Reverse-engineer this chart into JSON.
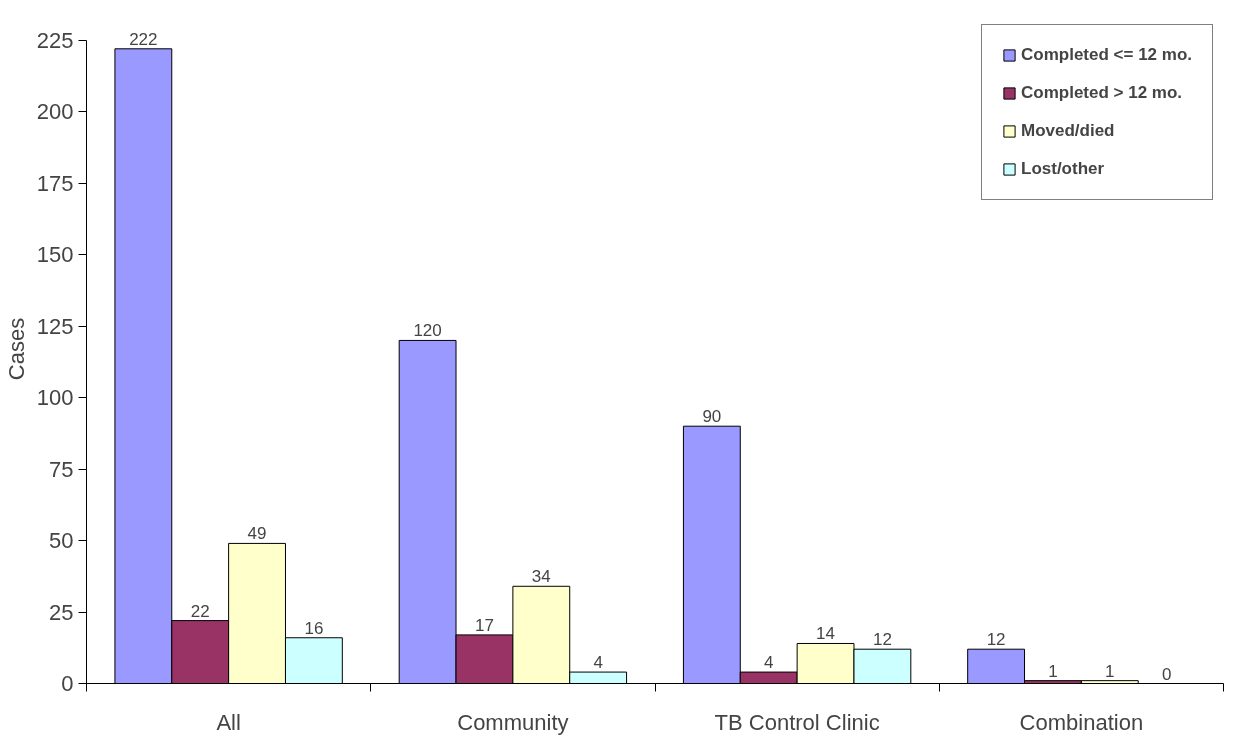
{
  "chart_data": {
    "type": "bar",
    "ylabel": "Cases",
    "categories": [
      "All",
      "Community",
      "TB Control Clinic",
      "Combination"
    ],
    "series": [
      {
        "name": "Completed <= 12 mo.",
        "color": "#9999ff",
        "values": [
          222,
          120,
          90,
          12
        ]
      },
      {
        "name": "Completed > 12 mo.",
        "color": "#993366",
        "values": [
          22,
          17,
          4,
          1
        ]
      },
      {
        "name": "Moved/died",
        "color": "#ffffcc",
        "values": [
          49,
          34,
          14,
          1
        ]
      },
      {
        "name": "Lost/other",
        "color": "#ccffff",
        "values": [
          16,
          4,
          12,
          0
        ]
      }
    ],
    "ylim": [
      0,
      225
    ],
    "yticks": [
      0,
      25,
      50,
      75,
      100,
      125,
      150,
      175,
      200,
      225
    ],
    "grid": false,
    "legend": "top right",
    "data_labels": true
  }
}
